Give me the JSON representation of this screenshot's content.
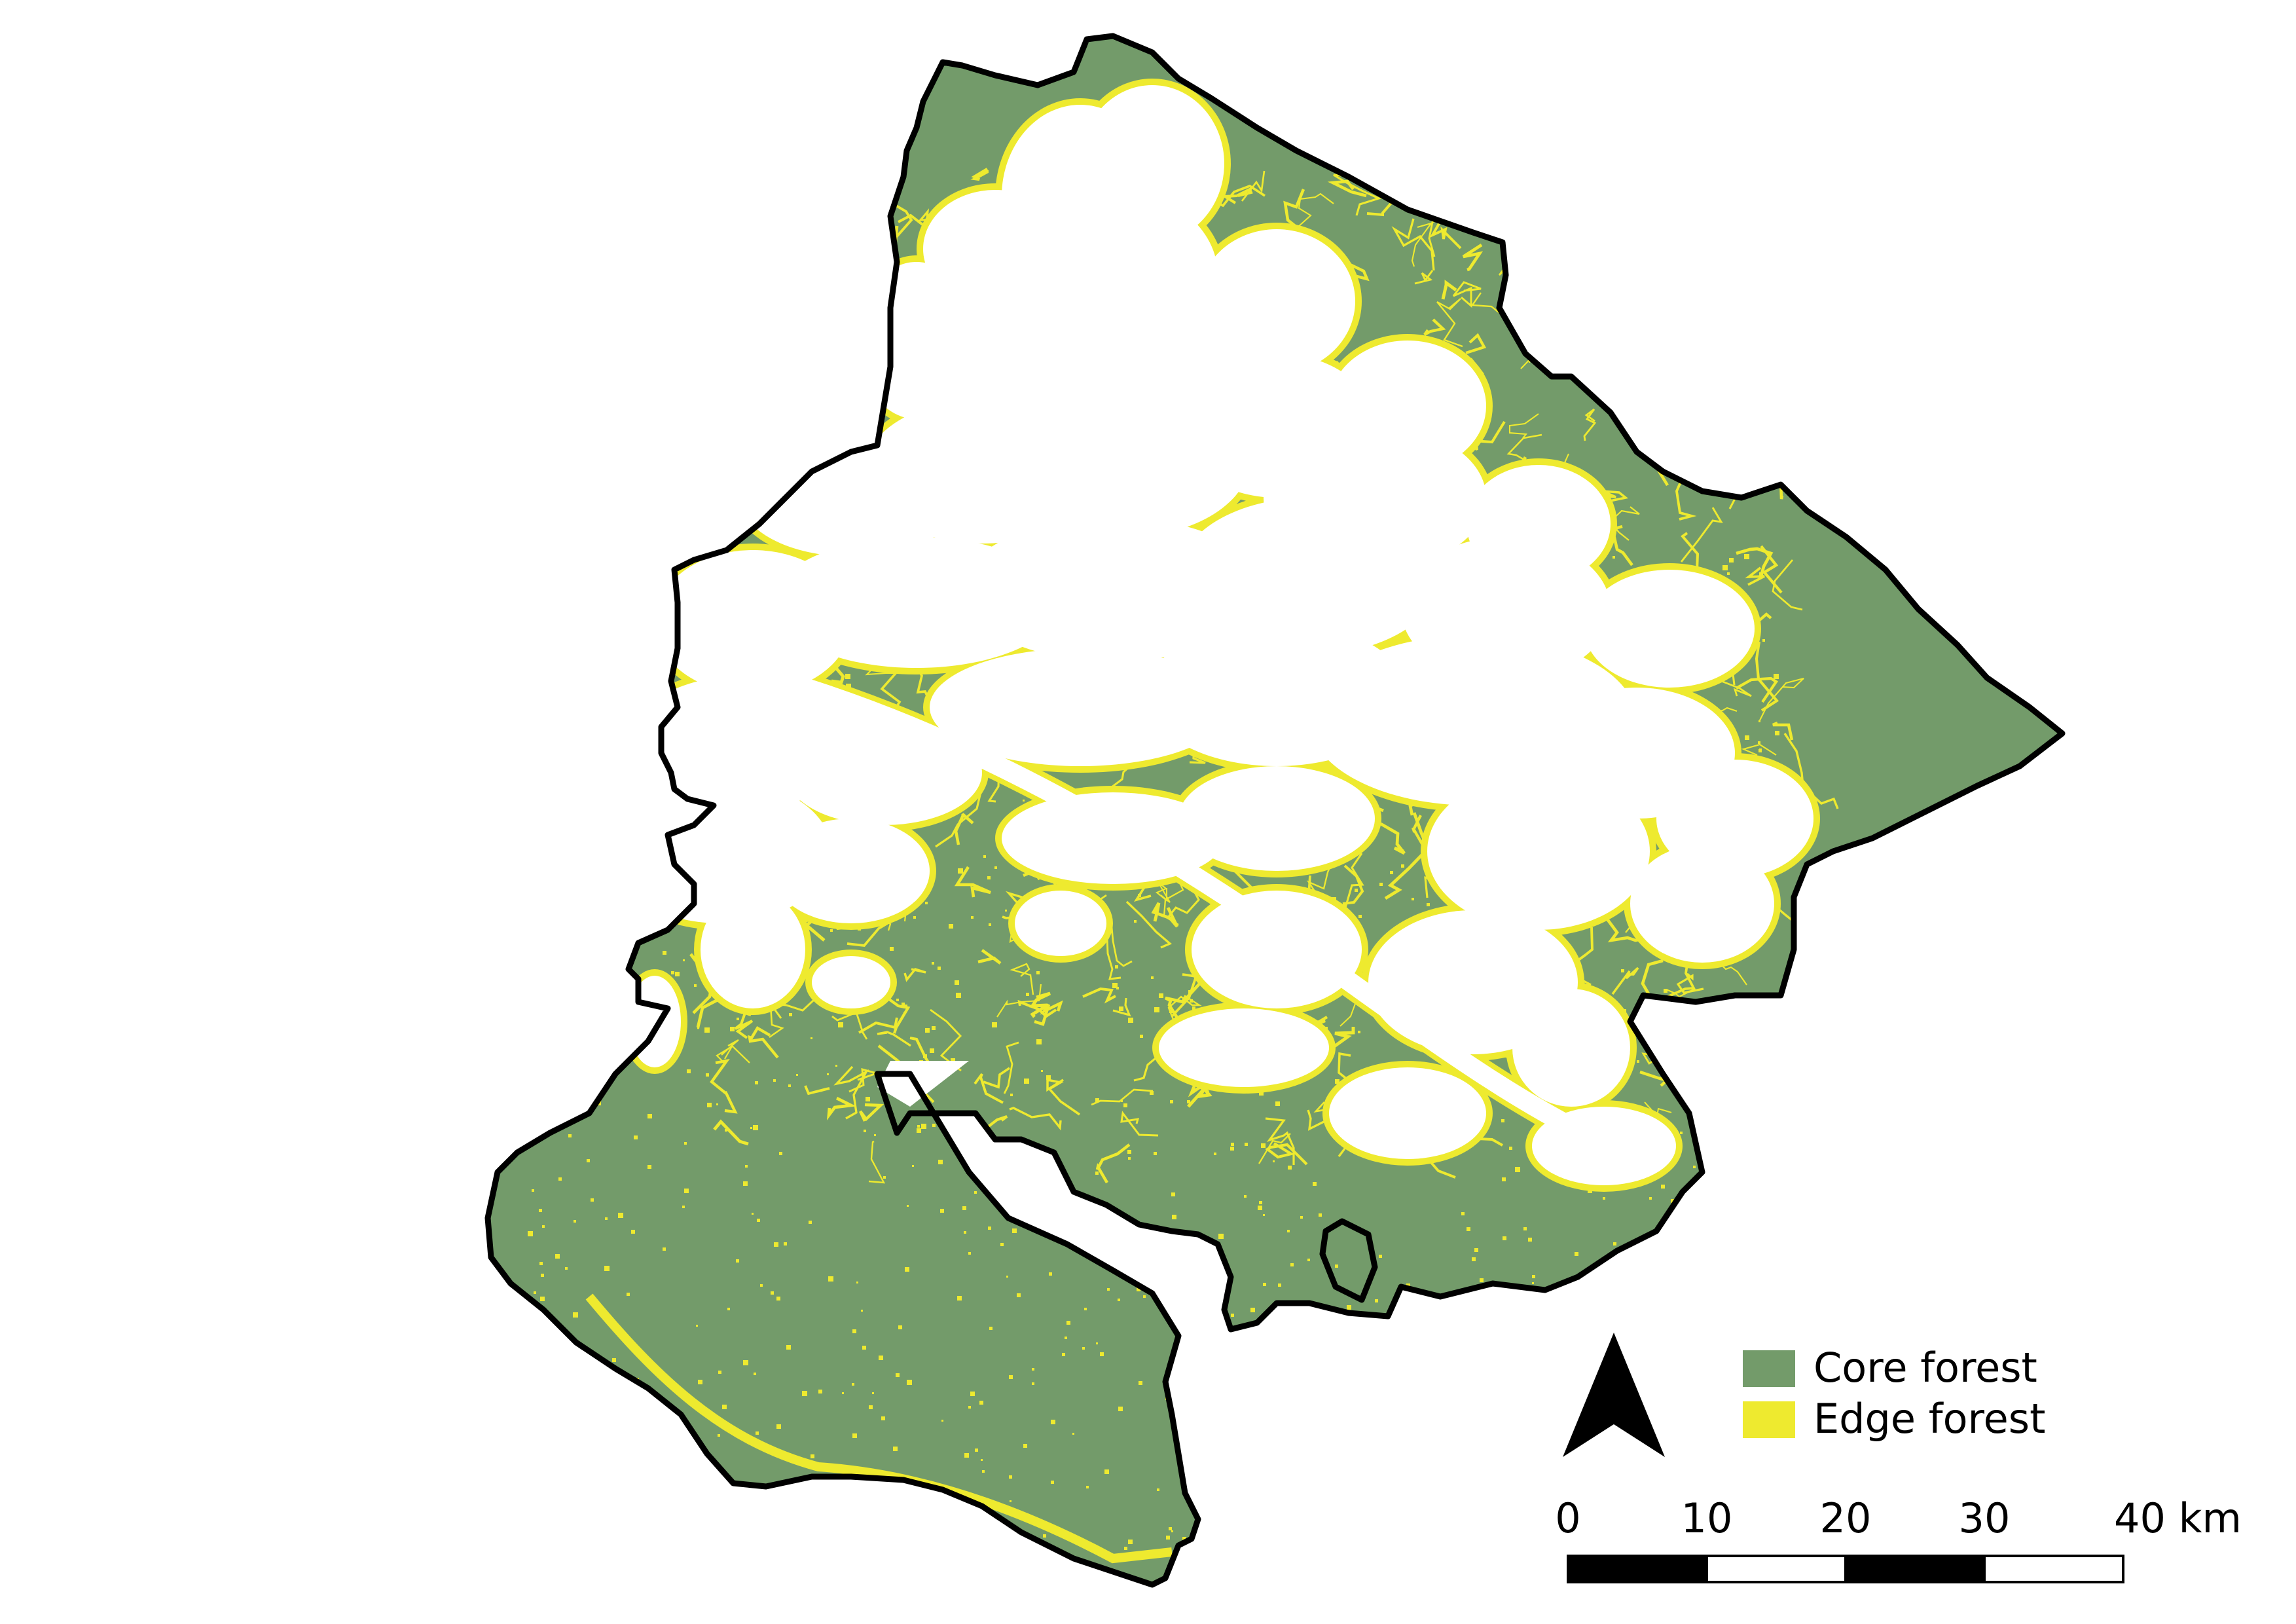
{
  "map": {
    "colors": {
      "core": "#739b6a",
      "edge": "#eeea2f",
      "background": "#ffffff",
      "outline": "#000000"
    },
    "legend": {
      "items": [
        {
          "key": "core",
          "label": "Core forest"
        },
        {
          "key": "edge",
          "label": "Edge forest"
        }
      ]
    },
    "north_arrow": {
      "icon": "north-arrow-icon"
    },
    "scale_bar": {
      "ticks": [
        "0",
        "10",
        "20",
        "30",
        "40 km"
      ]
    }
  }
}
